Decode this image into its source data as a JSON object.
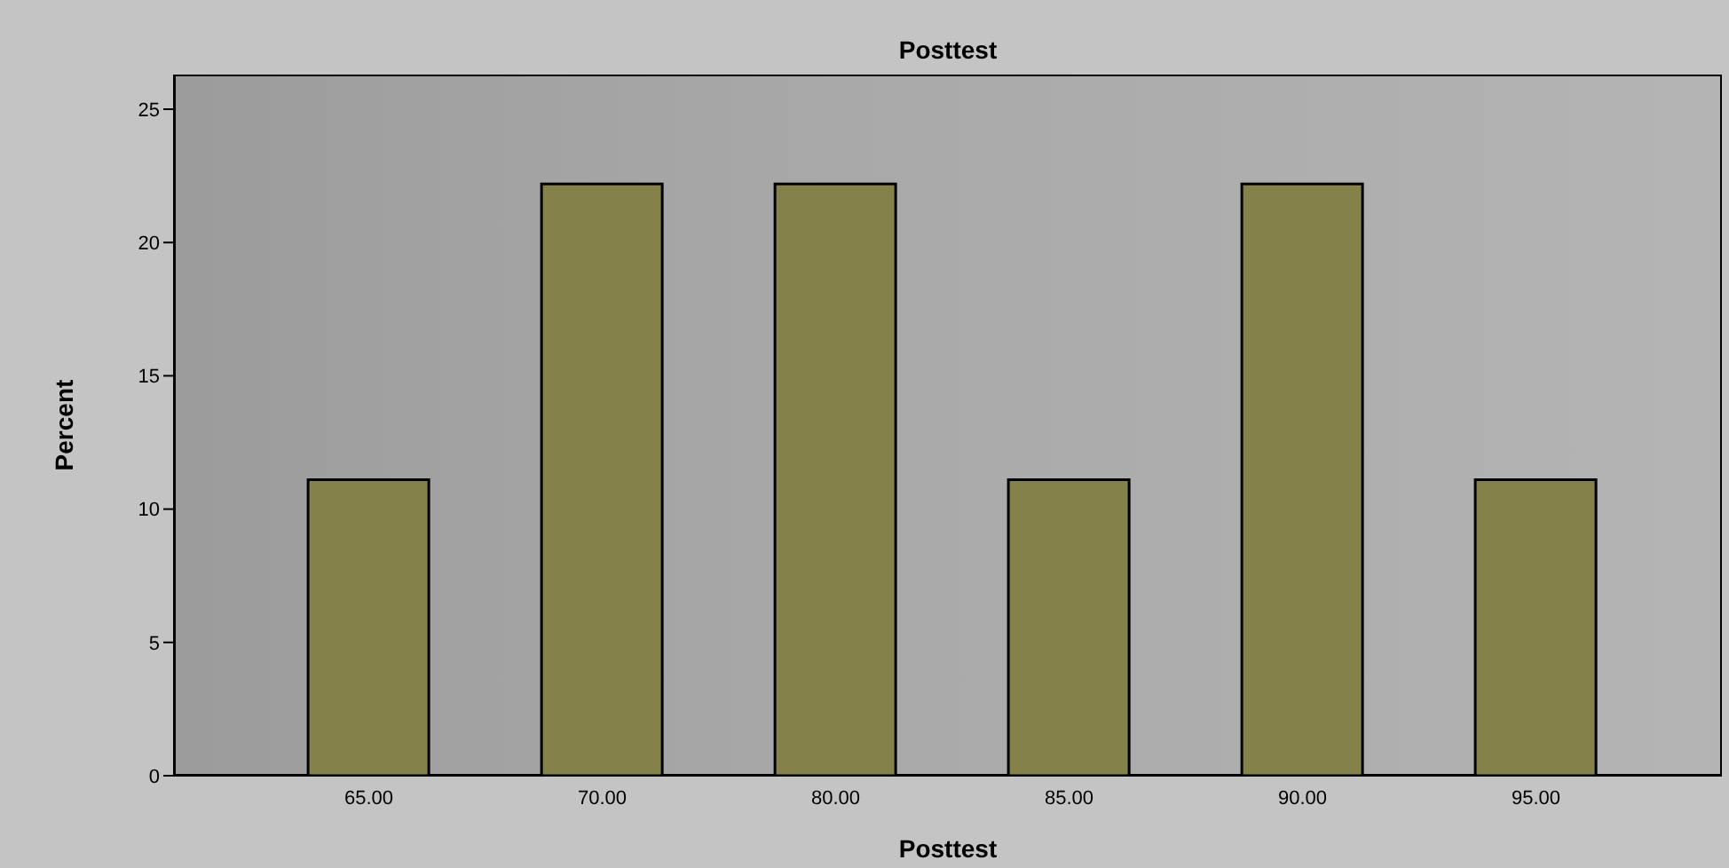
{
  "chart_data": {
    "type": "bar",
    "title": "Posttest",
    "xlabel": "Posttest",
    "ylabel": "Percent",
    "categories": [
      "65.00",
      "70.00",
      "80.00",
      "85.00",
      "90.00",
      "95.00"
    ],
    "values": [
      11.1,
      22.2,
      22.2,
      11.1,
      22.2,
      11.1
    ],
    "color": "#85814b",
    "ylim": [
      0,
      26.3
    ],
    "yticks": [
      0,
      5,
      10,
      15,
      20,
      25
    ],
    "grid": false
  }
}
